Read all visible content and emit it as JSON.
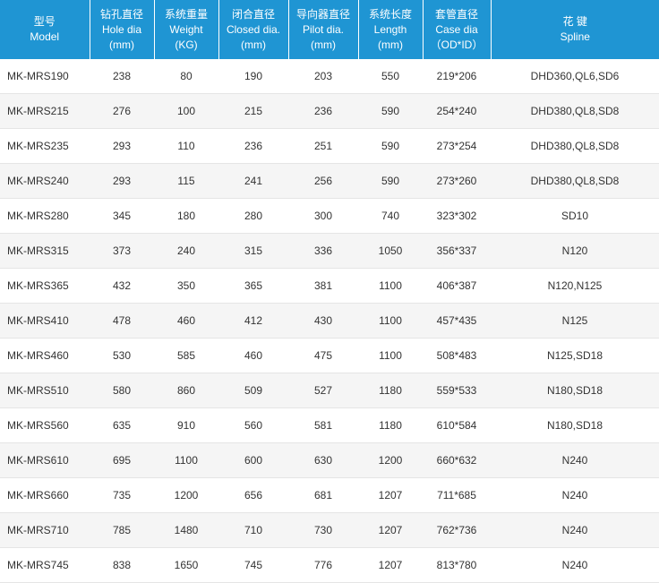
{
  "columns": [
    {
      "key": "model",
      "zh": "型号",
      "en": "Model",
      "unit": ""
    },
    {
      "key": "hole",
      "zh": "钻孔直径",
      "en": "Hole dia",
      "unit": "(mm)"
    },
    {
      "key": "weight",
      "zh": "系统重量",
      "en": "Weight",
      "unit": "(KG)"
    },
    {
      "key": "closed",
      "zh": "闭合直径",
      "en": "Closed dia.",
      "unit": "(mm)"
    },
    {
      "key": "pilot",
      "zh": "导向器直径",
      "en": "Pilot dia.",
      "unit": "(mm)"
    },
    {
      "key": "length",
      "zh": "系统长度",
      "en": "Length",
      "unit": "(mm)"
    },
    {
      "key": "case",
      "zh": "套管直径",
      "en": "Case dia",
      "unit": "（OD*ID）"
    },
    {
      "key": "spline",
      "zh": "花 键",
      "en": "Spline",
      "unit": ""
    }
  ],
  "rows": [
    {
      "model": "MK-MRS190",
      "hole": "238",
      "weight": "80",
      "closed": "190",
      "pilot": "203",
      "length": "550",
      "case": "219*206",
      "spline": "DHD360,QL6,SD6"
    },
    {
      "model": "MK-MRS215",
      "hole": "276",
      "weight": "100",
      "closed": "215",
      "pilot": "236",
      "length": "590",
      "case": "254*240",
      "spline": "DHD380,QL8,SD8"
    },
    {
      "model": "MK-MRS235",
      "hole": "293",
      "weight": "110",
      "closed": "236",
      "pilot": "251",
      "length": "590",
      "case": "273*254",
      "spline": "DHD380,QL8,SD8"
    },
    {
      "model": "MK-MRS240",
      "hole": "293",
      "weight": "115",
      "closed": "241",
      "pilot": "256",
      "length": "590",
      "case": "273*260",
      "spline": "DHD380,QL8,SD8"
    },
    {
      "model": "MK-MRS280",
      "hole": "345",
      "weight": "180",
      "closed": "280",
      "pilot": "300",
      "length": "740",
      "case": "323*302",
      "spline": "SD10"
    },
    {
      "model": "MK-MRS315",
      "hole": "373",
      "weight": "240",
      "closed": "315",
      "pilot": "336",
      "length": "1050",
      "case": "356*337",
      "spline": "N120"
    },
    {
      "model": "MK-MRS365",
      "hole": "432",
      "weight": "350",
      "closed": "365",
      "pilot": "381",
      "length": "1100",
      "case": "406*387",
      "spline": "N120,N125"
    },
    {
      "model": "MK-MRS410",
      "hole": "478",
      "weight": "460",
      "closed": "412",
      "pilot": "430",
      "length": "1100",
      "case": "457*435",
      "spline": "N125"
    },
    {
      "model": "MK-MRS460",
      "hole": "530",
      "weight": "585",
      "closed": "460",
      "pilot": "475",
      "length": "1100",
      "case": "508*483",
      "spline": "N125,SD18"
    },
    {
      "model": "MK-MRS510",
      "hole": "580",
      "weight": "860",
      "closed": "509",
      "pilot": "527",
      "length": "1180",
      "case": "559*533",
      "spline": "N180,SD18"
    },
    {
      "model": "MK-MRS560",
      "hole": "635",
      "weight": "910",
      "closed": "560",
      "pilot": "581",
      "length": "1180",
      "case": "610*584",
      "spline": "N180,SD18"
    },
    {
      "model": "MK-MRS610",
      "hole": "695",
      "weight": "1100",
      "closed": "600",
      "pilot": "630",
      "length": "1200",
      "case": "660*632",
      "spline": "N240"
    },
    {
      "model": "MK-MRS660",
      "hole": "735",
      "weight": "1200",
      "closed": "656",
      "pilot": "681",
      "length": "1207",
      "case": "711*685",
      "spline": "N240"
    },
    {
      "model": "MK-MRS710",
      "hole": "785",
      "weight": "1480",
      "closed": "710",
      "pilot": "730",
      "length": "1207",
      "case": "762*736",
      "spline": "N240"
    },
    {
      "model": "MK-MRS745",
      "hole": "838",
      "weight": "1650",
      "closed": "745",
      "pilot": "776",
      "length": "1207",
      "case": "813*780",
      "spline": "N240"
    }
  ],
  "colors": {
    "header_bg": "#1f95d3",
    "header_text": "#ffffff",
    "row_even_bg": "#f5f5f5",
    "row_odd_bg": "#ffffff",
    "cell_text": "#333333",
    "border": "#e5e5e5"
  }
}
